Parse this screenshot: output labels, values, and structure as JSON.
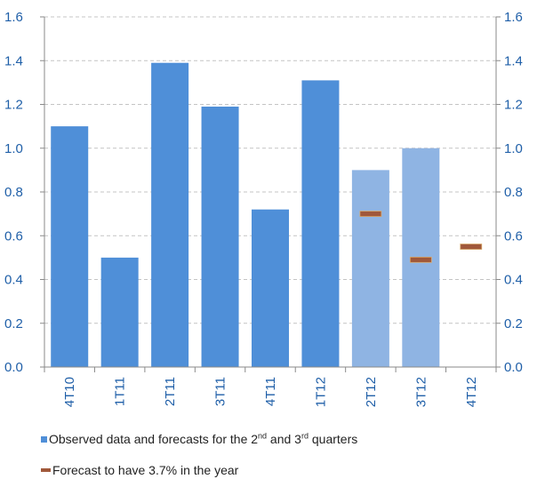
{
  "chart_data": {
    "type": "bar",
    "categories": [
      "4T10",
      "1T11",
      "2T11",
      "3T11",
      "4T11",
      "1T12",
      "2T12",
      "3T12",
      "4T12"
    ],
    "series": [
      {
        "name": "Observed data and forecasts for the 2nd and 3rd quarters",
        "type": "bar",
        "values": [
          1.1,
          0.5,
          1.39,
          1.19,
          0.72,
          1.31,
          0.9,
          1.0,
          null
        ],
        "colors": [
          "#4f8fd8",
          "#4f8fd8",
          "#4f8fd8",
          "#4f8fd8",
          "#4f8fd8",
          "#4f8fd8",
          "#8fb4e3",
          "#8fb4e3",
          "#8fb4e3"
        ]
      },
      {
        "name": "Forecast to have 3.7% in the year",
        "type": "marker",
        "values": [
          null,
          null,
          null,
          null,
          null,
          null,
          0.7,
          0.49,
          0.55
        ],
        "color": "#a0583a"
      }
    ],
    "y_ticks": [
      "0.0",
      "0.2",
      "0.4",
      "0.6",
      "0.8",
      "1.0",
      "1.2",
      "1.4",
      "1.6"
    ],
    "ylim": [
      0,
      1.6
    ],
    "grid": true,
    "tick_color": "#1f5fa8",
    "legend_position": "bottom-left"
  },
  "legend": {
    "item1_prefix": "Observed data and forecasts for the 2",
    "item1_sup1": "nd",
    "item1_mid": " and 3",
    "item1_sup2": "rd",
    "item1_suffix": " quarters",
    "item2": "Forecast to have 3.7% in the year"
  }
}
